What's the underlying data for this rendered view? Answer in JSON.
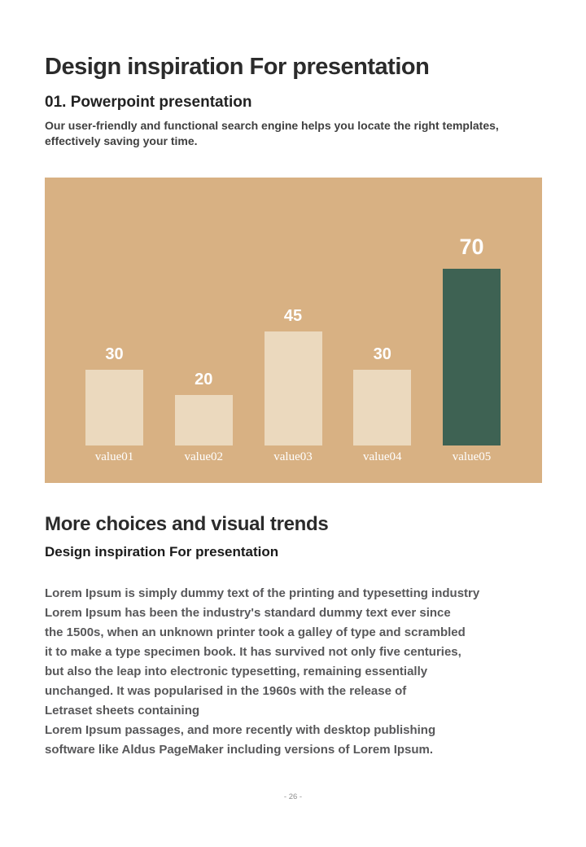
{
  "page": {
    "title": "Design inspiration For presentation",
    "section1": {
      "heading": "01. Powerpoint presentation",
      "body": "Our user-friendly and functional search engine helps you locate the right templates,\neffectively saving your time."
    },
    "section2": {
      "heading": "More choices and visual trends",
      "subheading": "Design inspiration For presentation",
      "paragraph": "Lorem Ipsum is simply dummy text of the printing and typesetting industry\nLorem Ipsum has been the industry's standard dummy text ever since\nthe 1500s, when an unknown printer took a galley of type and scrambled\nit to make a type specimen book. It has survived not only five centuries,\nbut also the leap into electronic typesetting, remaining essentially\nunchanged. It was popularised in the 1960s with the release of\nLetraset sheets containing\nLorem Ipsum passages, and more recently with desktop publishing\nsoftware like Aldus PageMaker including versions of Lorem Ipsum."
    },
    "footer": {
      "page_number": "- 26 -"
    }
  },
  "chart_data": {
    "type": "bar",
    "categories": [
      "value01",
      "value02",
      "value03",
      "value04",
      "value05"
    ],
    "values": [
      30,
      20,
      45,
      30,
      70
    ],
    "title": "",
    "xlabel": "",
    "ylabel": "",
    "ylim": [
      0,
      100
    ],
    "grid": false,
    "legend": false,
    "panel_background": "#D8B183",
    "bar_colors": [
      "#EBD9BE",
      "#EBD9BE",
      "#EBD9BE",
      "#EBD9BE",
      "#3E6253"
    ],
    "value_label_color": "#FFFFFF",
    "category_label_color": "#FFFFFF",
    "highlighted_category": "value05"
  }
}
